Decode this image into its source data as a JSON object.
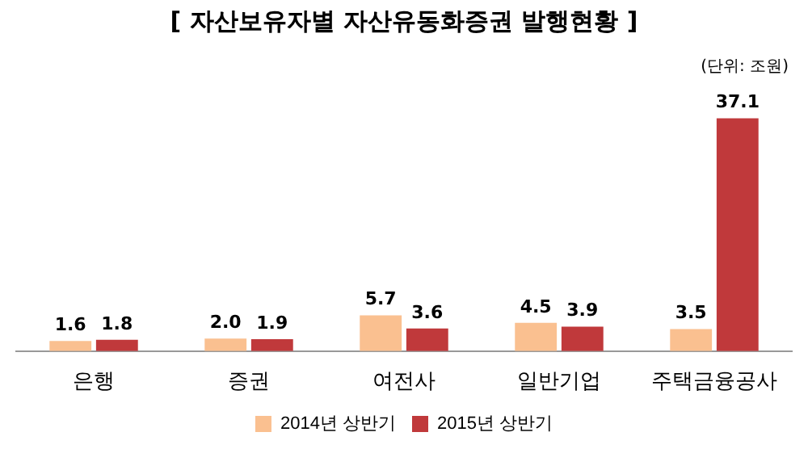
{
  "chart_data": {
    "type": "bar",
    "title": "[ 자산보유자별 자산유동화증권 발행현황 ]",
    "annotations": [
      "(단위: 조원)"
    ],
    "categories": [
      "은행",
      "증권",
      "여전사",
      "일반기업",
      "주택금융공사"
    ],
    "series": [
      {
        "name": "2014년 상반기",
        "color": "#fac090",
        "values": [
          1.6,
          2.0,
          5.7,
          4.5,
          3.5
        ],
        "value_labels": [
          "1.6",
          "2.0",
          "5.7",
          "4.5",
          "3.5"
        ]
      },
      {
        "name": "2015년 상반기",
        "color": "#c0393b",
        "values": [
          1.8,
          1.9,
          3.6,
          3.9,
          37.1
        ],
        "value_labels": [
          "1.8",
          "1.9",
          "3.6",
          "3.9",
          "37.1"
        ]
      }
    ],
    "legend": "bottom",
    "tick_labels": "x",
    "grid": false
  }
}
